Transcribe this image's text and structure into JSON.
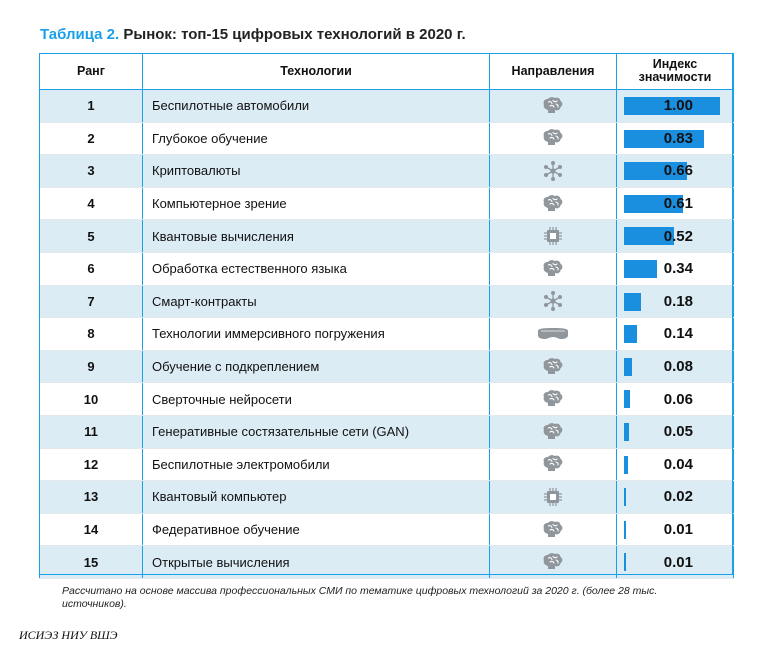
{
  "title": {
    "number": "Таблица 2.",
    "text": "Рынок: топ-15 цифровых технологий в 2020 г."
  },
  "columns": {
    "rank": "Ранг",
    "technology": "Технологии",
    "direction": "Направления",
    "index": "Индекс значимости"
  },
  "bar_color": "#1a8fe0",
  "accent_color": "#1aa0e8",
  "rows": [
    {
      "rank": "1",
      "tech": "Беспилотные автомобили",
      "icon": "brain-icon",
      "index": "1.00",
      "value": 1.0
    },
    {
      "rank": "2",
      "tech": "Глубокое обучение",
      "icon": "brain-icon",
      "index": "0.83",
      "value": 0.83
    },
    {
      "rank": "3",
      "tech": "Криптовалюты",
      "icon": "network-icon",
      "index": "0.66",
      "value": 0.66
    },
    {
      "rank": "4",
      "tech": "Компьютерное зрение",
      "icon": "brain-icon",
      "index": "0.61",
      "value": 0.61
    },
    {
      "rank": "5",
      "tech": "Квантовые вычисления",
      "icon": "chip-icon",
      "index": "0.52",
      "value": 0.52
    },
    {
      "rank": "6",
      "tech": "Обработка естественного языка",
      "icon": "brain-icon",
      "index": "0.34",
      "value": 0.34
    },
    {
      "rank": "7",
      "tech": "Смарт-контракты",
      "icon": "network-icon",
      "index": "0.18",
      "value": 0.18
    },
    {
      "rank": "8",
      "tech": "Технологии иммерсивного погружения",
      "icon": "vr-headset-icon",
      "index": "0.14",
      "value": 0.14
    },
    {
      "rank": "9",
      "tech": "Обучение с подкреплением",
      "icon": "brain-icon",
      "index": "0.08",
      "value": 0.08
    },
    {
      "rank": "10",
      "tech": "Сверточные нейросети",
      "icon": "brain-icon",
      "index": "0.06",
      "value": 0.06
    },
    {
      "rank": "11",
      "tech": "Генеративные состязательные сети (GAN)",
      "icon": "brain-icon",
      "index": "0.05",
      "value": 0.05
    },
    {
      "rank": "12",
      "tech": "Беспилотные электромобили",
      "icon": "brain-icon",
      "index": "0.04",
      "value": 0.04
    },
    {
      "rank": "13",
      "tech": "Квантовый компьютер",
      "icon": "chip-icon",
      "index": "0.02",
      "value": 0.02
    },
    {
      "rank": "14",
      "tech": "Федеративное обучение",
      "icon": "brain-icon",
      "index": "0.01",
      "value": 0.01
    },
    {
      "rank": "15",
      "tech": "Открытые вычисления",
      "icon": "brain-icon",
      "index": "0.01",
      "value": 0.01
    }
  ],
  "note": "Рассчитано на основе массива профессиональных СМИ по тематике цифровых технологий за 2020 г. (более 28 тыс. источников).",
  "source": "ИСИЭЗ НИУ ВШЭ"
}
